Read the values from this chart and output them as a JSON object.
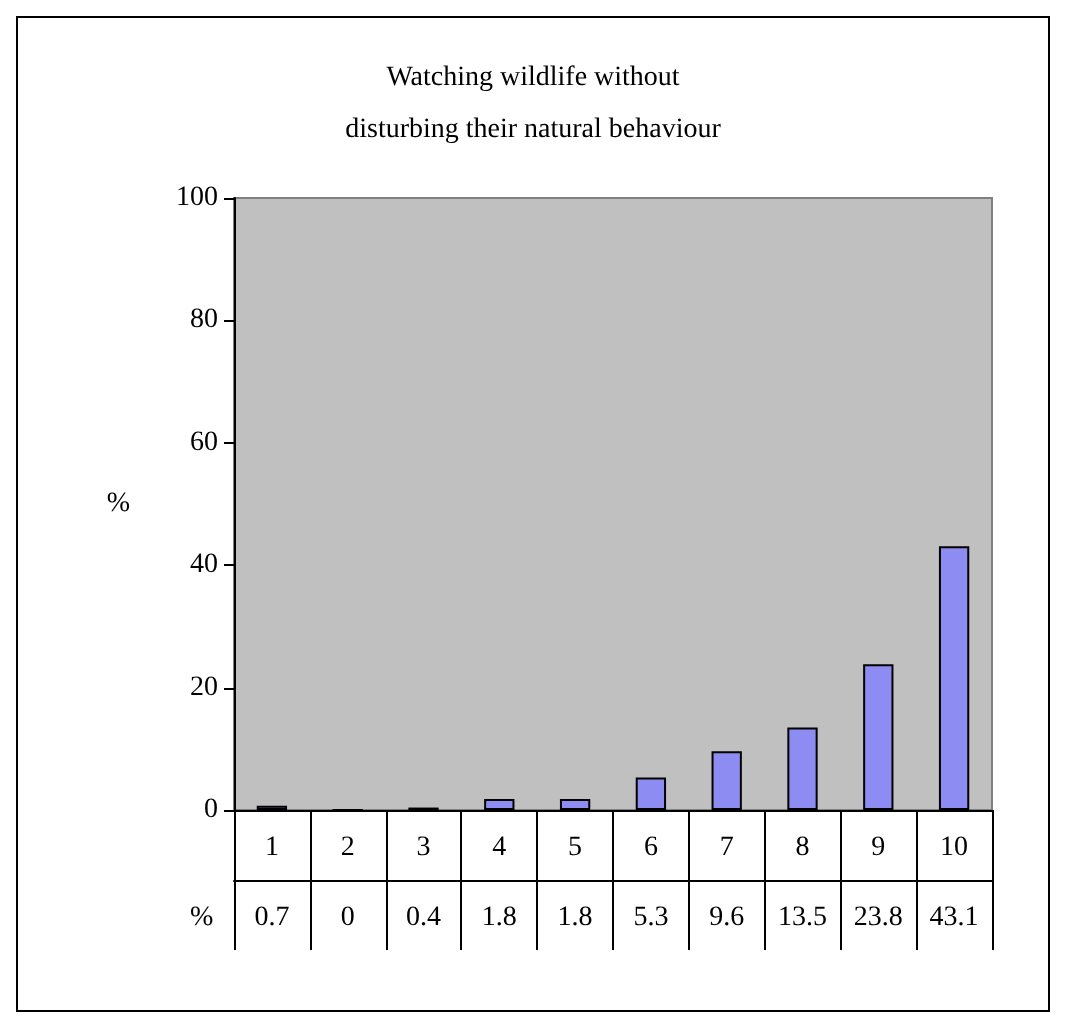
{
  "chart_data": {
    "type": "bar",
    "title": "Watching wildlife without\ndisturbing their natural behaviour",
    "ylabel": "%",
    "categories": [
      "1",
      "2",
      "3",
      "4",
      "5",
      "6",
      "7",
      "8",
      "9",
      "10"
    ],
    "series": [
      {
        "name": "%",
        "color": "#8c8cf2",
        "values": [
          0.7,
          0,
          0.4,
          1.8,
          1.8,
          5.3,
          9.6,
          13.5,
          23.8,
          43.1
        ]
      }
    ],
    "ylim": [
      0,
      100
    ],
    "yticks": [
      0,
      20,
      40,
      60,
      80,
      100
    ],
    "grid": false,
    "legend": false,
    "data_labels": true
  }
}
